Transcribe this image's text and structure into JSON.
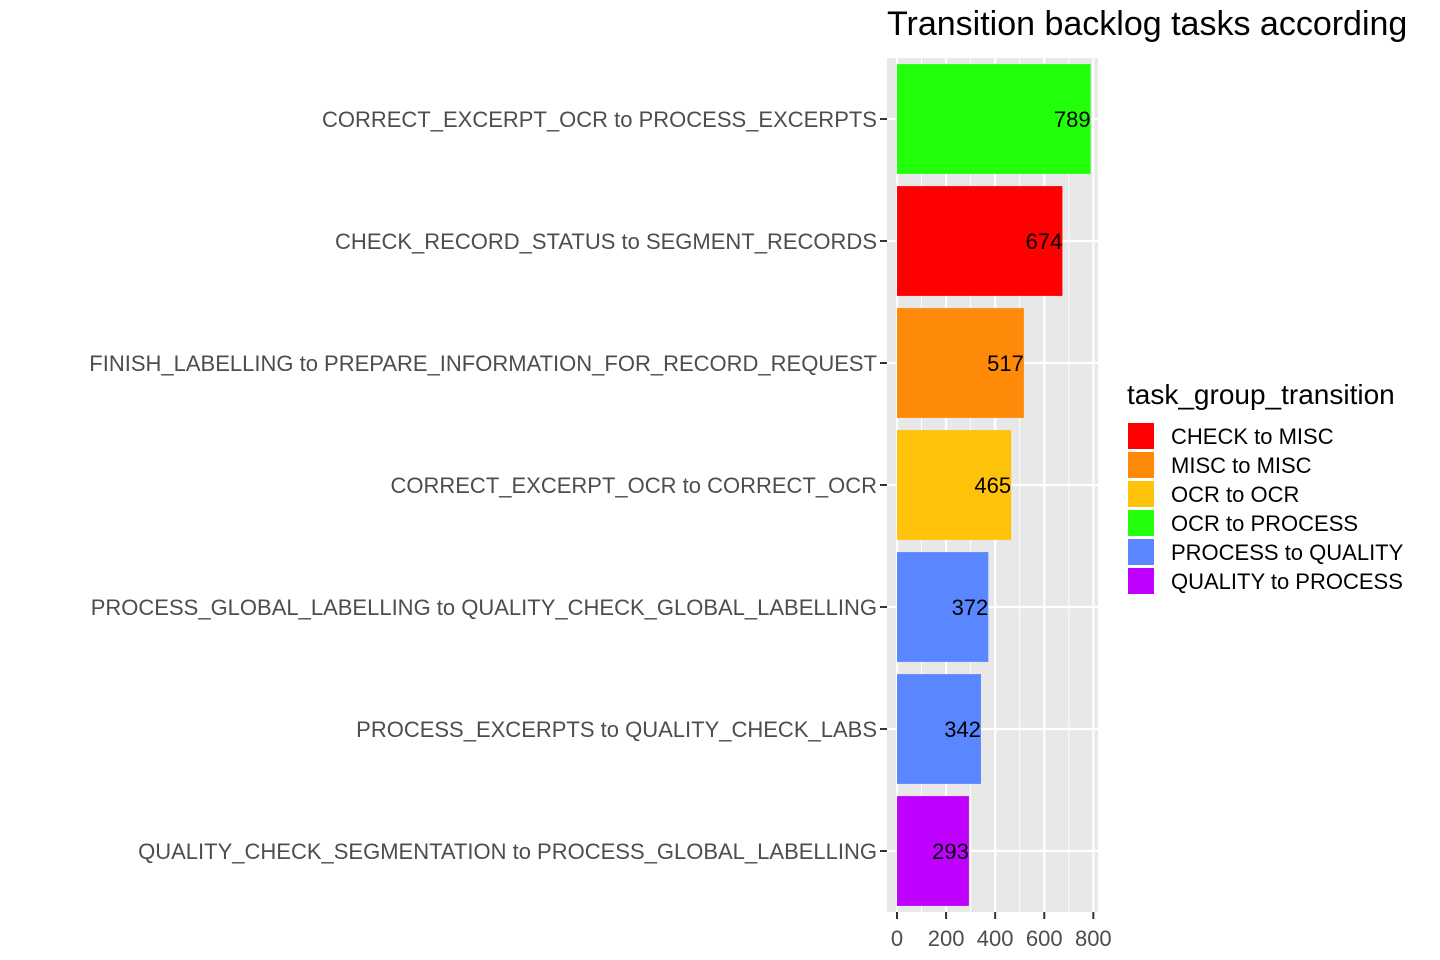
{
  "chart_data": {
    "type": "bar",
    "orientation": "horizontal",
    "title": "Transition backlog tasks according",
    "xlabel": "",
    "ylabel": "",
    "xlim": [
      0,
      830
    ],
    "x_ticks": [
      0,
      200,
      400,
      600,
      800
    ],
    "grid": true,
    "categories": [
      "CORRECT_EXCERPT_OCR to  PROCESS_EXCERPTS",
      "CHECK_RECORD_STATUS to  SEGMENT_RECORDS",
      "FINISH_LABELLING to  PREPARE_INFORMATION_FOR_RECORD_REQUEST",
      "CORRECT_EXCERPT_OCR to  CORRECT_OCR",
      "PROCESS_GLOBAL_LABELLING to  QUALITY_CHECK_GLOBAL_LABELLING",
      "PROCESS_EXCERPTS to  QUALITY_CHECK_LABS",
      "QUALITY_CHECK_SEGMENTATION to  PROCESS_GLOBAL_LABELLING"
    ],
    "values": [
      789,
      674,
      517,
      465,
      372,
      342,
      293
    ],
    "groups": [
      "OCR to  PROCESS",
      "CHECK to  MISC",
      "MISC to  MISC",
      "OCR to  OCR",
      "PROCESS to  QUALITY",
      "PROCESS to  QUALITY",
      "QUALITY to  PROCESS"
    ],
    "legend": {
      "title": "task_group_transition",
      "placement": "right",
      "entries": [
        {
          "name": "CHECK to  MISC",
          "color": "#ff0000"
        },
        {
          "name": "MISC to  MISC",
          "color": "#ff8a0a"
        },
        {
          "name": "OCR to  OCR",
          "color": "#ffc20a"
        },
        {
          "name": "OCR to  PROCESS",
          "color": "#22ff0a"
        },
        {
          "name": "PROCESS to  QUALITY",
          "color": "#5a87ff"
        },
        {
          "name": "QUALITY to  PROCESS",
          "color": "#bf00ff"
        }
      ]
    },
    "panel_background": "#e8e8e8",
    "grid_color": "#ffffff"
  }
}
